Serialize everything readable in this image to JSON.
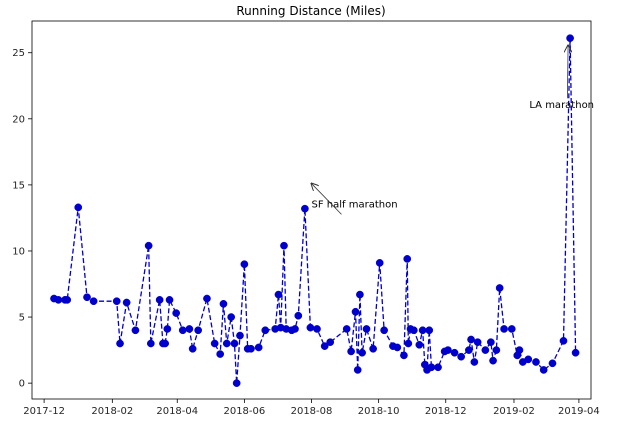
{
  "chart_data": {
    "type": "line",
    "title": "Running Distance (Miles)",
    "xlabel": "",
    "ylabel": "",
    "x_axis": {
      "type": "date",
      "range": [
        "2017-11-20",
        "2019-04-12"
      ],
      "ticks": [
        "2017-12-01",
        "2018-02-01",
        "2018-04-01",
        "2018-06-01",
        "2018-08-01",
        "2018-10-01",
        "2018-12-01",
        "2019-02-01",
        "2019-04-01"
      ],
      "tick_labels": [
        "2017-12",
        "2018-02",
        "2018-04",
        "2018-06",
        "2018-08",
        "2018-10",
        "2018-12",
        "2019-02",
        "2019-04"
      ]
    },
    "y_axis": {
      "range": [
        -1.2,
        27.4
      ],
      "ticks": [
        0,
        5,
        10,
        15,
        20,
        25
      ],
      "tick_labels": [
        "0",
        "5",
        "10",
        "15",
        "20",
        "25"
      ]
    },
    "grid": false,
    "line_style": "dashed",
    "marker": "circle",
    "color": "#0000cc",
    "series": [
      {
        "name": "",
        "x": [
          "2017-12-10",
          "2017-12-14",
          "2017-12-20",
          "2017-12-22",
          "2018-01-01",
          "2018-01-09",
          "2018-01-15",
          "2018-02-05",
          "2018-02-08",
          "2018-02-14",
          "2018-02-22",
          "2018-03-06",
          "2018-03-08",
          "2018-03-16",
          "2018-03-19",
          "2018-03-21",
          "2018-03-23",
          "2018-03-25",
          "2018-03-31",
          "2018-04-06",
          "2018-04-12",
          "2018-04-15",
          "2018-04-20",
          "2018-04-28",
          "2018-05-05",
          "2018-05-10",
          "2018-05-13",
          "2018-05-16",
          "2018-05-20",
          "2018-05-23",
          "2018-05-25",
          "2018-05-28",
          "2018-06-01",
          "2018-06-04",
          "2018-06-07",
          "2018-06-14",
          "2018-06-20",
          "2018-06-29",
          "2018-07-02",
          "2018-07-04",
          "2018-07-07",
          "2018-07-09",
          "2018-07-14",
          "2018-07-17",
          "2018-07-20",
          "2018-07-26",
          "2018-07-31",
          "2018-08-06",
          "2018-08-13",
          "2018-08-18",
          "2018-09-02",
          "2018-09-06",
          "2018-09-10",
          "2018-09-12",
          "2018-09-14",
          "2018-09-16",
          "2018-09-20",
          "2018-09-26",
          "2018-10-02",
          "2018-10-06",
          "2018-10-14",
          "2018-10-18",
          "2018-10-24",
          "2018-10-27",
          "2018-10-28",
          "2018-10-30",
          "2018-11-02",
          "2018-11-07",
          "2018-11-10",
          "2018-11-12",
          "2018-11-14",
          "2018-11-16",
          "2018-11-18",
          "2018-11-24",
          "2018-11-30",
          "2018-12-03",
          "2018-12-09",
          "2018-12-15",
          "2018-12-22",
          "2018-12-24",
          "2018-12-27",
          "2018-12-30",
          "2019-01-06",
          "2019-01-11",
          "2019-01-13",
          "2019-01-16",
          "2019-01-19",
          "2019-01-23",
          "2019-01-30",
          "2019-02-04",
          "2019-02-06",
          "2019-02-09",
          "2019-02-14",
          "2019-02-21",
          "2019-02-28",
          "2019-03-08",
          "2019-03-18",
          "2019-03-24",
          "2019-03-29"
        ],
        "y": [
          6.4,
          6.3,
          6.3,
          6.3,
          13.3,
          6.5,
          6.2,
          6.2,
          3.0,
          6.1,
          4.0,
          10.4,
          3.0,
          6.3,
          3.0,
          3.0,
          4.1,
          6.3,
          5.3,
          4.0,
          4.1,
          2.6,
          4.0,
          6.4,
          3.0,
          2.2,
          6.0,
          3.0,
          5.0,
          3.0,
          0.0,
          3.6,
          9.0,
          2.6,
          2.6,
          2.7,
          4.0,
          4.1,
          6.7,
          4.2,
          10.4,
          4.1,
          4.0,
          4.1,
          5.1,
          13.2,
          4.2,
          4.1,
          2.8,
          3.1,
          4.1,
          2.4,
          5.4,
          1.0,
          6.7,
          2.3,
          4.1,
          2.6,
          9.1,
          4.0,
          2.8,
          2.7,
          2.1,
          9.4,
          3.0,
          4.1,
          4.0,
          2.9,
          4.0,
          1.4,
          1.0,
          4.0,
          1.2,
          1.2,
          2.4,
          2.5,
          2.3,
          2.0,
          2.5,
          3.3,
          1.6,
          3.1,
          2.5,
          3.1,
          1.7,
          2.5,
          7.2,
          4.1,
          4.1,
          2.1,
          2.5,
          1.6,
          1.8,
          1.6,
          1.0,
          1.5,
          3.2,
          26.1,
          2.3
        ]
      }
    ],
    "annotations": [
      {
        "text": "SF half marathon",
        "x": "2018-08-01",
        "y": 13.3,
        "text_x": "2018-08-01",
        "text_y": 15.1
      },
      {
        "text": "LA marathon",
        "x": "2019-02-15",
        "y": 20.8,
        "text_x": "2019-03-24",
        "text_y": 26.0
      }
    ]
  }
}
